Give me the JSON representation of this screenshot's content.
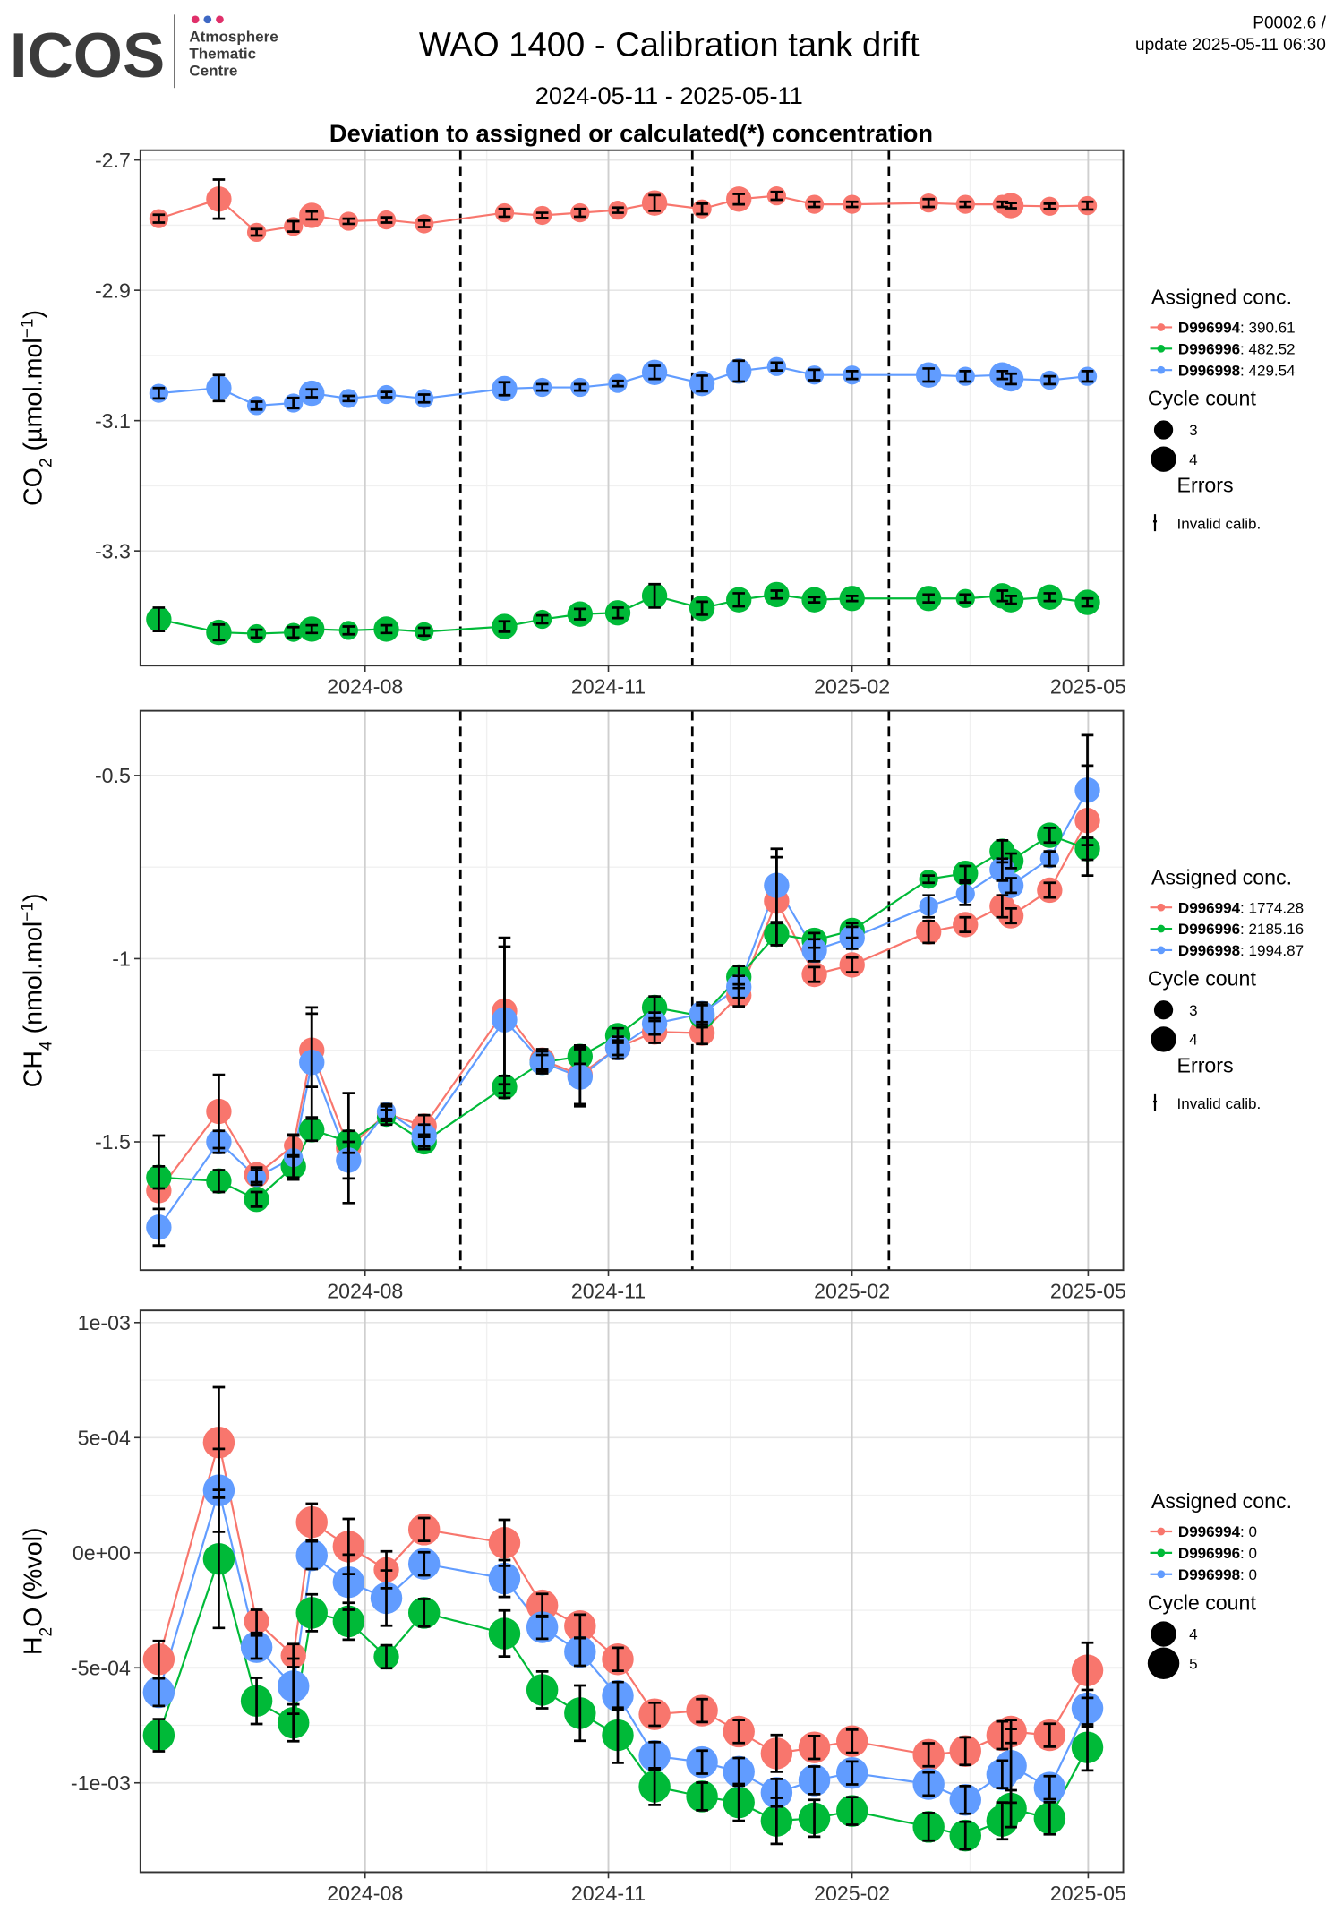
{
  "header": {
    "logo": "ICOS",
    "logo_sub": [
      "Atmosphere",
      "Thematic",
      "Centre"
    ],
    "title": "WAO 1400 - Calibration tank drift",
    "period": "2024-05-11 - 2025-05-11",
    "subtitle": "Deviation to assigned or calculated(*) concentration",
    "version": "P0002.6 /",
    "update": "update  2025-05-11 06:30"
  },
  "chart_data": [
    {
      "type": "line",
      "ylabel": {
        "main": "CO",
        "sub": "2",
        "rest": " (µmol.mol",
        "sup": "−1",
        "end": ")"
      },
      "x": [
        2024.369,
        2024.431,
        2024.47,
        2024.508,
        2024.527,
        2024.565,
        2024.604,
        2024.643,
        2024.726,
        2024.765,
        2024.804,
        2024.843,
        2024.881,
        2024.93,
        2024.968,
        2025.007,
        2025.046,
        2025.085,
        2025.164,
        2025.202,
        2025.24,
        2025.249,
        2025.289,
        2025.328
      ],
      "xlim": [
        2024.35,
        2025.365
      ],
      "xticks": [
        {
          "value": 2024.582,
          "label": "2024-08"
        },
        {
          "value": 2024.8333,
          "label": "2024-11"
        },
        {
          "value": 2025.0849,
          "label": "2025-02"
        },
        {
          "value": 2025.3288,
          "label": "2025-05"
        }
      ],
      "ylim": [
        -3.476,
        -2.685
      ],
      "yticks": [
        -2.7,
        -2.9,
        -3.1,
        -3.3
      ],
      "vlines": [
        2024.6805,
        2024.92,
        2025.123
      ],
      "grid": true,
      "legend": {
        "title": "Assigned conc.",
        "separator": ": ",
        "size_title": "Cycle count",
        "sizes": [
          3,
          4
        ],
        "error_title": "Errors",
        "error_label": "Invalid calib."
      },
      "series": [
        {
          "name": "D996994",
          "color": "#F8766D",
          "assigned": 390.61,
          "values": [
            -2.79,
            -2.76,
            -2.811,
            -2.802,
            -2.785,
            -2.794,
            -2.792,
            -2.798,
            -2.781,
            -2.785,
            -2.781,
            -2.777,
            -2.766,
            -2.775,
            -2.76,
            -2.755,
            -2.768,
            -2.768,
            -2.766,
            -2.768,
            -2.768,
            -2.77,
            -2.771,
            -2.77
          ],
          "errors": [
            0.006,
            0.03,
            0.005,
            0.008,
            0.006,
            0.004,
            0.004,
            0.005,
            0.006,
            0.004,
            0.006,
            0.004,
            0.012,
            0.008,
            0.008,
            0.006,
            0.004,
            0.004,
            0.006,
            0.004,
            0.004,
            0.004,
            0.004,
            0.006
          ],
          "sizes": [
            3,
            4,
            3,
            3,
            4,
            3,
            3,
            3,
            3,
            3,
            3,
            3,
            4,
            3,
            4,
            3,
            3,
            3,
            3,
            3,
            3,
            4,
            3,
            3
          ]
        },
        {
          "name": "D996996",
          "color": "#00BA38",
          "assigned": 482.52,
          "values": [
            -3.405,
            -3.425,
            -3.427,
            -3.425,
            -3.42,
            -3.422,
            -3.42,
            -3.424,
            -3.416,
            -3.405,
            -3.397,
            -3.395,
            -3.369,
            -3.388,
            -3.375,
            -3.367,
            -3.375,
            -3.373,
            -3.373,
            -3.373,
            -3.369,
            -3.375,
            -3.371,
            -3.379
          ],
          "errors": [
            0.018,
            0.012,
            0.006,
            0.008,
            0.006,
            0.006,
            0.006,
            0.006,
            0.008,
            0.006,
            0.008,
            0.008,
            0.018,
            0.01,
            0.01,
            0.006,
            0.004,
            0.004,
            0.006,
            0.006,
            0.008,
            0.006,
            0.006,
            0.006
          ],
          "sizes": [
            4,
            4,
            3,
            3,
            4,
            3,
            4,
            3,
            4,
            3,
            4,
            4,
            4,
            4,
            4,
            4,
            4,
            4,
            4,
            3,
            4,
            4,
            4,
            4
          ]
        },
        {
          "name": "D996998",
          "color": "#619CFF",
          "assigned": 429.54,
          "values": [
            -3.058,
            -3.05,
            -3.077,
            -3.073,
            -3.058,
            -3.066,
            -3.06,
            -3.066,
            -3.051,
            -3.049,
            -3.049,
            -3.043,
            -3.026,
            -3.043,
            -3.024,
            -3.017,
            -3.03,
            -3.03,
            -3.03,
            -3.032,
            -3.03,
            -3.036,
            -3.038,
            -3.032
          ],
          "errors": [
            0.008,
            0.02,
            0.006,
            0.008,
            0.006,
            0.004,
            0.004,
            0.006,
            0.01,
            0.005,
            0.005,
            0.004,
            0.01,
            0.012,
            0.016,
            0.006,
            0.008,
            0.006,
            0.01,
            0.008,
            0.006,
            0.008,
            0.006,
            0.008
          ],
          "sizes": [
            3,
            4,
            3,
            3,
            4,
            3,
            3,
            3,
            4,
            3,
            3,
            3,
            4,
            4,
            4,
            3,
            3,
            3,
            4,
            3,
            4,
            4,
            3,
            3
          ]
        }
      ]
    },
    {
      "type": "line",
      "ylabel": {
        "main": "CH",
        "sub": "4",
        "rest": " (nmol.mol",
        "sup": "−1",
        "end": ")"
      },
      "x": [
        2024.369,
        2024.431,
        2024.47,
        2024.508,
        2024.527,
        2024.565,
        2024.604,
        2024.643,
        2024.726,
        2024.765,
        2024.804,
        2024.843,
        2024.881,
        2024.93,
        2024.968,
        2025.007,
        2025.046,
        2025.085,
        2025.164,
        2025.202,
        2025.24,
        2025.249,
        2025.289,
        2025.328
      ],
      "xlim": [
        2024.35,
        2025.365
      ],
      "xticks": [
        {
          "value": 2024.582,
          "label": "2024-08"
        },
        {
          "value": 2024.8333,
          "label": "2024-11"
        },
        {
          "value": 2025.0849,
          "label": "2025-02"
        },
        {
          "value": 2025.3288,
          "label": "2025-05"
        }
      ],
      "ylim": [
        -1.85,
        -0.3233
      ],
      "yticks": [
        -0.5,
        -1.0,
        -1.5
      ],
      "vlines": [
        2024.6805,
        2024.92,
        2025.123
      ],
      "grid": true,
      "legend": {
        "title": "Assigned conc.",
        "separator": ": ",
        "size_title": "Cycle count",
        "sizes": [
          3,
          4
        ],
        "error_title": "Errors",
        "error_label": "Invalid calib."
      },
      "series": [
        {
          "name": "D996994",
          "color": "#F8766D",
          "assigned": 1774.28,
          "values": [
            -1.633,
            -1.417,
            -1.59,
            -1.51,
            -1.25,
            -1.517,
            -1.423,
            -1.457,
            -1.143,
            -1.277,
            -1.317,
            -1.243,
            -1.2,
            -1.203,
            -1.1,
            -0.843,
            -1.043,
            -1.017,
            -0.927,
            -0.907,
            -0.857,
            -0.883,
            -0.813,
            -0.623
          ],
          "errors": [
            0.15,
            0.1,
            0.02,
            0.03,
            0.1,
            0.15,
            0.02,
            0.03,
            0.2,
            0.03,
            0.08,
            0.02,
            0.03,
            0.03,
            0.03,
            0.12,
            0.02,
            0.02,
            0.03,
            0.02,
            0.03,
            0.02,
            0.02,
            0.15
          ],
          "sizes": [
            4,
            4,
            4,
            3,
            4,
            4,
            3,
            4,
            4,
            4,
            4,
            4,
            4,
            4,
            4,
            4,
            4,
            4,
            4,
            4,
            4,
            4,
            4,
            4
          ]
        },
        {
          "name": "D996996",
          "color": "#00BA38",
          "assigned": 2185.16,
          "values": [
            -1.597,
            -1.607,
            -1.657,
            -1.567,
            -1.467,
            -1.5,
            -1.433,
            -1.5,
            -1.35,
            -1.283,
            -1.267,
            -1.21,
            -1.133,
            -1.157,
            -1.05,
            -0.933,
            -0.95,
            -0.923,
            -0.783,
            -0.767,
            -0.707,
            -0.733,
            -0.663,
            -0.7
          ],
          "errors": [
            0.03,
            0.03,
            0.02,
            0.03,
            0.03,
            0.03,
            0.02,
            0.02,
            0.03,
            0.02,
            0.02,
            0.02,
            0.03,
            0.03,
            0.03,
            0.03,
            0.02,
            0.02,
            0.01,
            0.02,
            0.03,
            0.02,
            0.02,
            0.03
          ],
          "sizes": [
            4,
            4,
            4,
            4,
            4,
            4,
            3,
            4,
            4,
            4,
            4,
            4,
            4,
            4,
            4,
            4,
            4,
            4,
            3,
            4,
            4,
            4,
            4,
            4
          ]
        },
        {
          "name": "D996998",
          "color": "#619CFF",
          "assigned": 1994.87,
          "values": [
            -1.733,
            -1.5,
            -1.597,
            -1.543,
            -1.283,
            -1.55,
            -1.417,
            -1.483,
            -1.167,
            -1.283,
            -1.323,
            -1.243,
            -1.177,
            -1.15,
            -1.077,
            -0.8,
            -0.977,
            -0.943,
            -0.857,
            -0.823,
            -0.757,
            -0.8,
            -0.727,
            -0.54
          ],
          "errors": [
            0.05,
            0.03,
            0.02,
            0.06,
            0.15,
            0.05,
            0.02,
            0.03,
            0.2,
            0.03,
            0.08,
            0.03,
            0.03,
            0.03,
            0.03,
            0.1,
            0.03,
            0.03,
            0.03,
            0.03,
            0.03,
            0.02,
            0.02,
            0.15
          ],
          "sizes": [
            4,
            4,
            3,
            3,
            4,
            4,
            3,
            4,
            4,
            4,
            4,
            4,
            4,
            4,
            4,
            4,
            4,
            4,
            3,
            3,
            4,
            4,
            3,
            4
          ]
        }
      ]
    },
    {
      "type": "line",
      "ylabel": {
        "main": "H",
        "sub": "2",
        "rest": "O (%vol)"
      },
      "x": [
        2024.369,
        2024.431,
        2024.47,
        2024.508,
        2024.527,
        2024.565,
        2024.604,
        2024.643,
        2024.726,
        2024.765,
        2024.804,
        2024.843,
        2024.881,
        2024.93,
        2024.968,
        2025.007,
        2025.046,
        2025.085,
        2025.164,
        2025.202,
        2025.24,
        2025.249,
        2025.289,
        2025.328
      ],
      "xlim": [
        2024.35,
        2025.365
      ],
      "xticks": [
        {
          "value": 2024.582,
          "label": "2024-08"
        },
        {
          "value": 2024.8333,
          "label": "2024-11"
        },
        {
          "value": 2025.0849,
          "label": "2025-02"
        },
        {
          "value": 2025.3288,
          "label": "2025-05"
        }
      ],
      "ylim": [
        -0.001388,
        0.001053
      ],
      "yticks": [
        {
          "value": 0.001,
          "label": "1e-03"
        },
        {
          "value": 0.0005,
          "label": "5e-04"
        },
        {
          "value": 0,
          "label": "0e+00"
        },
        {
          "value": -0.0005,
          "label": "-5e-04"
        },
        {
          "value": -0.001,
          "label": "-1e-03"
        }
      ],
      "grid": true,
      "legend": {
        "title": "Assigned conc.",
        "separator": ": ",
        "size_title": "Cycle count",
        "sizes": [
          4,
          5
        ]
      },
      "series": [
        {
          "name": "D996994",
          "color": "#F8766D",
          "assigned": 0,
          "values": [
            -0.000463,
            0.000479,
            -0.000298,
            -0.000447,
            0.000133,
            2.7e-05,
            -7.4e-05,
            0.000101,
            4.3e-05,
            -0.000229,
            -0.000319,
            -0.000463,
            -0.000702,
            -0.000686,
            -0.000777,
            -0.000872,
            -0.000846,
            -0.000819,
            -0.000878,
            -0.000862,
            -0.000793,
            -0.000777,
            -0.000793,
            -0.000511
          ],
          "errors": [
            8e-05,
            0.00024,
            5e-05,
            5e-05,
            8e-05,
            0.00012,
            8e-05,
            5e-05,
            0.0001,
            5e-05,
            5e-05,
            5e-05,
            5e-05,
            5e-05,
            5e-05,
            8e-05,
            5e-05,
            5e-05,
            5e-05,
            6e-05,
            6e-05,
            5e-05,
            5e-05,
            0.00012
          ],
          "sizes": [
            5,
            5,
            4,
            4,
            5,
            5,
            4,
            5,
            5,
            5,
            5,
            5,
            5,
            5,
            5,
            5,
            5,
            5,
            5,
            5,
            5,
            5,
            5,
            5
          ]
        },
        {
          "name": "D996996",
          "color": "#00BA38",
          "assigned": 0,
          "values": [
            -0.000793,
            -2.7e-05,
            -0.000644,
            -0.000739,
            -0.000261,
            -0.000298,
            -0.000452,
            -0.000261,
            -0.000351,
            -0.000596,
            -0.000697,
            -0.000793,
            -0.001016,
            -0.001059,
            -0.001085,
            -0.001165,
            -0.001154,
            -0.001122,
            -0.001191,
            -0.001229,
            -0.001165,
            -0.001112,
            -0.001154,
            -0.000846
          ],
          "errors": [
            7e-05,
            0.0003,
            0.0001,
            8e-05,
            8e-05,
            8e-05,
            5e-05,
            6e-05,
            0.0001,
            8e-05,
            0.00012,
            0.00012,
            8e-05,
            6e-05,
            8e-05,
            0.0001,
            8e-05,
            6e-05,
            6e-05,
            6e-05,
            8e-05,
            8e-05,
            7e-05,
            0.0001
          ],
          "sizes": [
            5,
            5,
            5,
            5,
            5,
            5,
            4,
            5,
            5,
            5,
            5,
            5,
            5,
            5,
            5,
            5,
            5,
            5,
            5,
            5,
            5,
            5,
            5,
            5
          ]
        },
        {
          "name": "D996998",
          "color": "#619CFF",
          "assigned": 0,
          "values": [
            -0.000606,
            0.000271,
            -0.00041,
            -0.00058,
            -1.1e-05,
            -0.000128,
            -0.000197,
            -4.8e-05,
            -0.000112,
            -0.000324,
            -0.000431,
            -0.000622,
            -0.000883,
            -0.00091,
            -0.000952,
            -0.001043,
            -0.000989,
            -0.000957,
            -0.001005,
            -0.001074,
            -0.000963,
            -0.000926,
            -0.001021,
            -0.000676
          ],
          "errors": [
            6e-05,
            0.00018,
            5e-05,
            0.00012,
            6e-05,
            0.00012,
            0.00012,
            5e-05,
            8e-05,
            5e-05,
            6e-05,
            6e-05,
            6e-05,
            5e-05,
            6e-05,
            6e-05,
            6e-05,
            5e-05,
            5e-05,
            6e-05,
            6e-05,
            0.00016,
            5e-05,
            8e-05
          ],
          "sizes": [
            5,
            5,
            5,
            5,
            5,
            5,
            5,
            5,
            5,
            5,
            5,
            5,
            5,
            5,
            5,
            5,
            5,
            5,
            5,
            5,
            5,
            5,
            5,
            5
          ]
        }
      ]
    }
  ]
}
